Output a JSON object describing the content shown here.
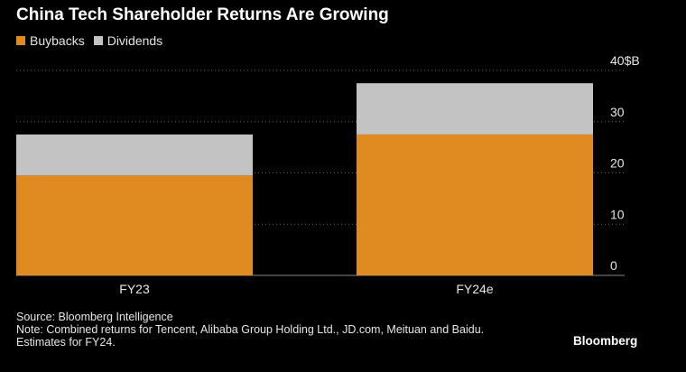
{
  "chart_data": {
    "type": "bar",
    "stacked": true,
    "title": "China Tech Shareholder Returns Are Growing",
    "categories": [
      "FY23",
      "FY24e"
    ],
    "series": [
      {
        "name": "Buybacks",
        "color": "#e08a22",
        "values": [
          19.5,
          27.5
        ]
      },
      {
        "name": "Dividends",
        "color": "#c3c3c3",
        "values": [
          8,
          10
        ]
      }
    ],
    "y_ticks": [
      {
        "value": 0,
        "label": "0"
      },
      {
        "value": 10,
        "label": "10"
      },
      {
        "value": 20,
        "label": "20"
      },
      {
        "value": 30,
        "label": "30"
      },
      {
        "value": 40,
        "label": "40$B"
      }
    ],
    "ylim": [
      0,
      40
    ],
    "grid": true,
    "legend": "top-left"
  },
  "footer": {
    "source": "Source: Bloomberg Intelligence",
    "note_line1": "Note: Combined returns for Tencent, Alibaba Group Holding Ltd., JD.com, Meituan and Baidu.",
    "note_line2": "Estimates for FY24."
  },
  "brand": "Bloomberg"
}
